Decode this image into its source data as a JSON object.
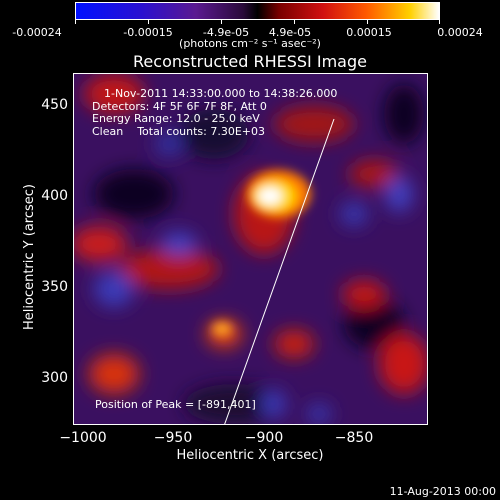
{
  "colorbar": {
    "ticks": [
      "-0.00024",
      "-0.00015",
      "-4.9e-05",
      "4.9e-05",
      "0.00015",
      "0.00024"
    ],
    "units": "(photons cm⁻² s⁻¹ asec⁻²)"
  },
  "title": "Reconstructed RHESSI Image",
  "info": {
    "time_range": "1-Nov-2011 14:33:00.000 to 14:38:26.000",
    "detectors": "Detectors: 4F 5F 6F 7F 8F, Att 0",
    "energy": "Energy Range: 12.0 - 25.0 keV",
    "clean": "Clean    Total counts: 7.30E+03"
  },
  "peak": "Position of Peak = [-891,401]",
  "axes": {
    "ylabel": "Heliocentric Y (arcsec)",
    "xlabel": "Heliocentric X (arcsec)",
    "yticks": [
      "450",
      "400",
      "350",
      "300"
    ],
    "xticks": [
      "−1000",
      "−950",
      "−900",
      "−850"
    ]
  },
  "footer": "11-Aug-2013 00:00"
}
